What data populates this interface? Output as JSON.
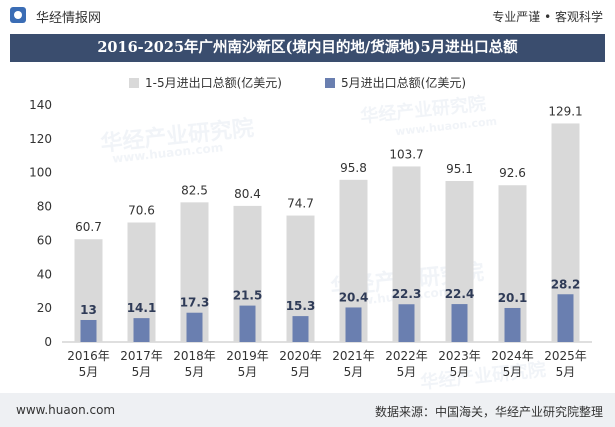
{
  "header": {
    "brand": "华经情报网",
    "tagline": "专业严谨 • 客观科学"
  },
  "watermark": {
    "name": "华经产业研究院",
    "url": "www.huaon.com"
  },
  "colors": {
    "title_bg": "#3a4d6e",
    "series_total": "#d9d9d9",
    "series_may": "#6a7fb0",
    "footer_bg": "#eef0f3"
  },
  "chart_data": {
    "type": "bar",
    "title": "2016-2025年广州南沙新区(境内目的地/货源地)5月进出口总额",
    "categories": [
      "2016年\n5月",
      "2017年\n5月",
      "2018年\n5月",
      "2019年\n5月",
      "2020年\n5月",
      "2021年\n5月",
      "2022年\n5月",
      "2023年\n5月",
      "2024年\n5月",
      "2025年\n5月"
    ],
    "series": [
      {
        "name": "1-5月进出口总额(亿美元)",
        "values": [
          60.7,
          70.6,
          82.5,
          80.4,
          74.7,
          95.8,
          103.7,
          95.1,
          92.6,
          129.1
        ]
      },
      {
        "name": "5月进出口总额(亿美元)",
        "values": [
          13,
          14.1,
          17.3,
          21.5,
          15.3,
          20.4,
          22.3,
          22.4,
          20.1,
          28.2
        ]
      }
    ],
    "ylim": [
      0,
      140
    ],
    "yticks": [
      0,
      20,
      40,
      60,
      80,
      100,
      120,
      140
    ],
    "grid": false,
    "legend_position": "top-left"
  },
  "footer": {
    "url": "www.huaon.com",
    "source": "数据来源：中国海关，华经产业研究院整理"
  }
}
